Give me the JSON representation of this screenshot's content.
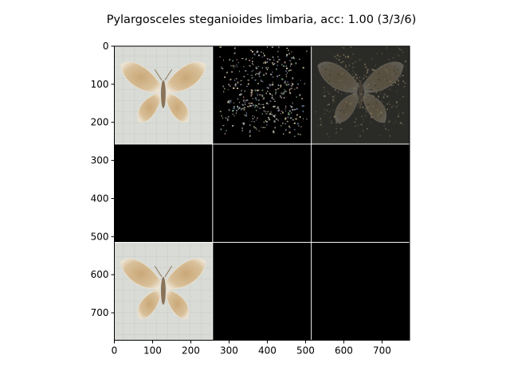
{
  "chart_data": {
    "type": "heatmap",
    "title": "Pylargosceles steganioides limbaria, acc: 1.00 (3/3/6)",
    "xlabel": "",
    "ylabel": "",
    "xlim": [
      0,
      772
    ],
    "ylim": [
      772,
      0
    ],
    "xticks": [
      0,
      100,
      200,
      300,
      400,
      500,
      600,
      700
    ],
    "yticks": [
      0,
      100,
      200,
      300,
      400,
      500,
      600,
      700
    ],
    "grid": {
      "rows": 3,
      "cols": 3,
      "cell_size": 256,
      "separator": 2,
      "separator_color": "#ffffff"
    },
    "cells": [
      {
        "row": 0,
        "col": 0,
        "content": "moth-photo"
      },
      {
        "row": 0,
        "col": 1,
        "content": "noisy-saliency-map"
      },
      {
        "row": 0,
        "col": 2,
        "content": "dark-overlay-moth"
      },
      {
        "row": 1,
        "col": 0,
        "content": "blank"
      },
      {
        "row": 1,
        "col": 1,
        "content": "blank"
      },
      {
        "row": 1,
        "col": 2,
        "content": "blank"
      },
      {
        "row": 2,
        "col": 0,
        "content": "moth-photo"
      },
      {
        "row": 2,
        "col": 1,
        "content": "blank"
      },
      {
        "row": 2,
        "col": 2,
        "content": "blank"
      }
    ],
    "grid_lines": false,
    "legend": "none"
  }
}
